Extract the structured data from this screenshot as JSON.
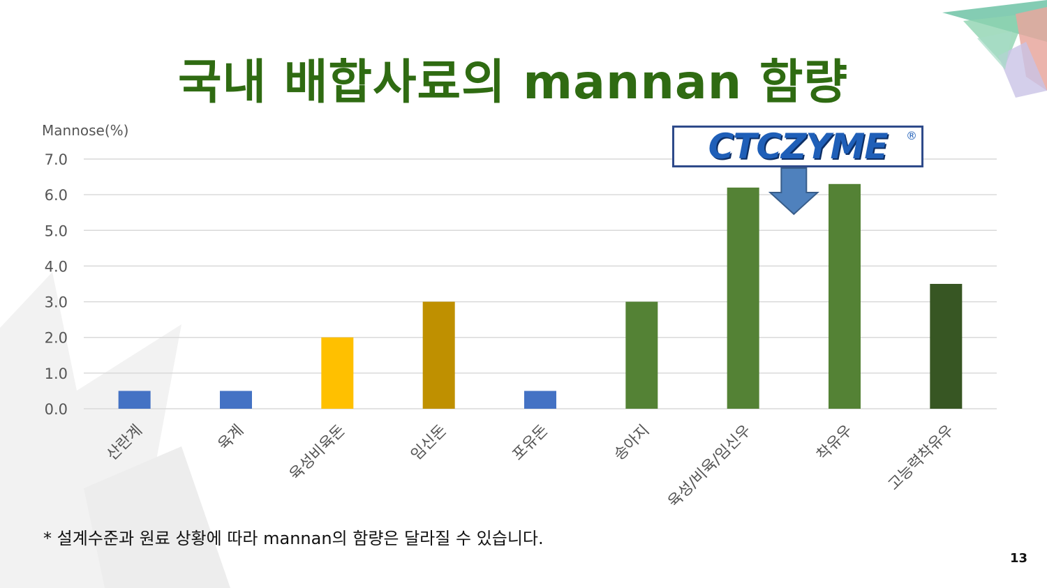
{
  "slide": {
    "title": "국내 배합사료의 mannan 함량",
    "footnote": "* 설계수준과 원료 상황에 따라 mannan의 함량은 달라질 수 있습니다.",
    "page_number": "13",
    "logo_text": "CTCZYME",
    "logo_mark": "®"
  },
  "chart_data": {
    "type": "bar",
    "title": "",
    "ylabel": "Mannose(%)",
    "xlabel": "",
    "categories": [
      "산란계",
      "육계",
      "육성비육돈",
      "임신돈",
      "포유돈",
      "송아지",
      "육성/비육/임신우",
      "착유우",
      "고능력착유우"
    ],
    "values": [
      0.5,
      0.5,
      2.0,
      3.0,
      0.5,
      3.0,
      6.2,
      6.3,
      3.5
    ],
    "colors": [
      "#4472c4",
      "#4472c4",
      "#ffc000",
      "#bf9000",
      "#4472c4",
      "#548235",
      "#548235",
      "#548235",
      "#375623"
    ],
    "ylim": [
      0,
      7
    ],
    "yticks": [
      0,
      1,
      2,
      3,
      4,
      5,
      6,
      7
    ],
    "ytick_labels": [
      "0.0",
      "1.0",
      "2.0",
      "3.0",
      "4.0",
      "5.0",
      "6.0",
      "7.0"
    ],
    "grid": true,
    "annotation": {
      "type": "arrow",
      "label": "CTCZYME",
      "between_categories": [
        "육성/비육/임신우",
        "착유우"
      ]
    }
  }
}
